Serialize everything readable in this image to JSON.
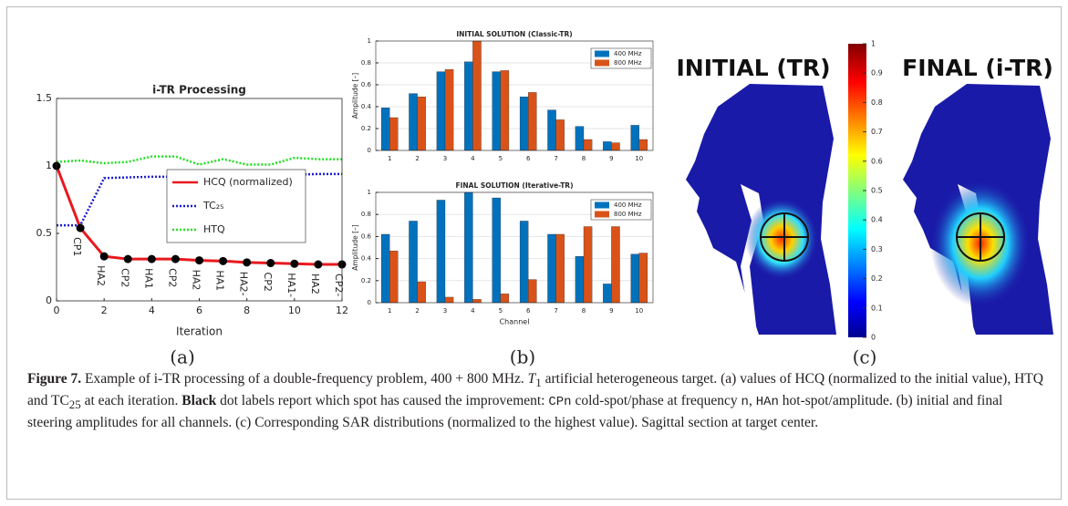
{
  "chart_data": [
    {
      "type": "line",
      "title": "i-TR Processing",
      "x_label": "Iteration",
      "x": [
        0,
        1,
        2,
        3,
        4,
        5,
        6,
        7,
        8,
        9,
        10,
        11,
        12
      ],
      "xlim": [
        0,
        12
      ],
      "xticks": [
        0,
        2,
        4,
        6,
        8,
        10,
        12
      ],
      "ylim": [
        0,
        1.5
      ],
      "yticks": [
        0,
        0.5,
        1,
        1.5
      ],
      "grid": false,
      "legend": "center-right",
      "point_labels": [
        null,
        "CP1",
        "HA2",
        "CP2",
        "HA1",
        "CP2",
        "HA2",
        "HA1",
        "HA2-",
        "CP2",
        "HA1-",
        "HA2",
        "CP2-"
      ],
      "series": [
        {
          "name": "HCQ (normalized)",
          "color": "#e8191f",
          "dash": "solid",
          "marker": "#000000",
          "values": [
            1,
            0.54,
            0.33,
            0.31,
            0.31,
            0.31,
            0.3,
            0.295,
            0.285,
            0.28,
            0.275,
            0.27,
            0.27
          ]
        },
        {
          "name": "TC₂₅",
          "color": "#1a1ad0",
          "dash": "dotted",
          "values": [
            0.56,
            0.56,
            0.91,
            0.915,
            0.92,
            0.92,
            0.92,
            0.925,
            0.93,
            0.93,
            0.935,
            0.94,
            0.94
          ]
        },
        {
          "name": "HTQ",
          "color": "#22e022",
          "dash": "dotted",
          "values": [
            1.03,
            1.04,
            1.02,
            1.03,
            1.07,
            1.07,
            1.01,
            1.05,
            1.01,
            1.01,
            1.06,
            1.05,
            1.05
          ]
        }
      ]
    },
    {
      "type": "bar",
      "title": "INITIAL SOLUTION (Classic-TR)",
      "y_label": "Amplitude [–]",
      "categories": [
        "1",
        "2",
        "3",
        "4",
        "5",
        "6",
        "7",
        "8",
        "9",
        "10"
      ],
      "ylim": [
        0,
        1
      ],
      "yticks": [
        0,
        0.2,
        0.4,
        0.6,
        0.8,
        1
      ],
      "grid": true,
      "legend": "upper-right",
      "series": [
        {
          "name": "400 MHz",
          "color": "#0072bd",
          "values": [
            0.39,
            0.52,
            0.72,
            0.81,
            0.72,
            0.49,
            0.37,
            0.22,
            0.08,
            0.23
          ]
        },
        {
          "name": "800 MHz",
          "color": "#d95319",
          "values": [
            0.3,
            0.49,
            0.74,
            1.0,
            0.73,
            0.53,
            0.28,
            0.1,
            0.07,
            0.1
          ]
        }
      ]
    },
    {
      "type": "bar",
      "title": "FINAL SOLUTION (Iterative-TR)",
      "y_label": "Amplitude [–]",
      "x_label": "Channel",
      "categories": [
        "1",
        "2",
        "3",
        "4",
        "5",
        "6",
        "7",
        "8",
        "9",
        "10"
      ],
      "ylim": [
        0,
        1
      ],
      "yticks": [
        0,
        0.2,
        0.4,
        0.6,
        0.8,
        1
      ],
      "grid": true,
      "legend": "upper-right",
      "series": [
        {
          "name": "400 MHz",
          "color": "#0072bd",
          "values": [
            0.62,
            0.74,
            0.93,
            1.0,
            0.95,
            0.74,
            0.62,
            0.42,
            0.17,
            0.44
          ]
        },
        {
          "name": "800 MHz",
          "color": "#d95319",
          "values": [
            0.47,
            0.19,
            0.05,
            0.03,
            0.08,
            0.21,
            0.62,
            0.69,
            0.69,
            0.45
          ]
        }
      ]
    }
  ],
  "sar": {
    "left_title": "INITIAL (TR)",
    "right_title": "FINAL (i-TR)",
    "colorbar_lim": [
      0,
      1
    ],
    "colorbar_ticks": [
      0,
      0.1,
      0.2,
      0.3,
      0.4,
      0.5,
      0.6,
      0.7,
      0.8,
      0.9,
      1
    ]
  },
  "panel_labels": [
    "(a)",
    "(b)",
    "(c)"
  ],
  "caption": [
    {
      "text": "Figure 7.",
      "style": "bold"
    },
    {
      "text": " Example of i-TR processing of a double-frequency problem, 400 + 800 MHz. ",
      "style": "plain"
    },
    {
      "text": "T",
      "style": "italic"
    },
    {
      "text": "1",
      "style": "sub"
    },
    {
      "text": " artificial heterogeneous target. (a) values of HCQ (normalized to the initial value), HTQ and TC",
      "style": "plain"
    },
    {
      "text": "25",
      "style": "sub"
    },
    {
      "text": " at each iteration. ",
      "style": "plain"
    },
    {
      "text": "Black",
      "style": "bold"
    },
    {
      "text": " dot labels report which spot has caused the improvement: ",
      "style": "plain"
    },
    {
      "text": "CPn",
      "style": "mono"
    },
    {
      "text": " cold-spot/phase at frequency ",
      "style": "plain"
    },
    {
      "text": "n",
      "style": "mono"
    },
    {
      "text": ", ",
      "style": "plain"
    },
    {
      "text": "HAn",
      "style": "mono"
    },
    {
      "text": " hot-spot/amplitude. (b) initial and final steering amplitudes for all channels. (c) Corresponding SAR distributions (normalized to the highest value). Sagittal section at target center.",
      "style": "plain"
    }
  ]
}
